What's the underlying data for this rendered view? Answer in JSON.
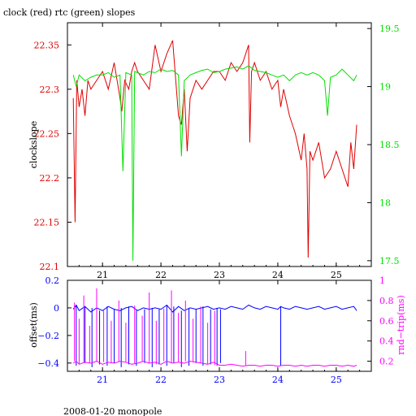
{
  "title": "clock (red) rtc (green) slopes",
  "footer": "2008-01-20 monopole",
  "colors": {
    "clock": "#e00000",
    "rtc": "#00e000",
    "offset": "#0000ff",
    "rndtrip": "#ff00ff",
    "axis": "#000000"
  },
  "chart_data": [
    {
      "type": "line",
      "ylabel": "clockslope",
      "y2label": "",
      "xlim": [
        20.4,
        25.6
      ],
      "ylim": [
        22.1,
        22.375
      ],
      "y2lim": [
        17.45,
        19.55
      ],
      "xticks": [
        21,
        22,
        23,
        24,
        25
      ],
      "xticklabels": [
        "21",
        "22",
        "23",
        "24",
        "25"
      ],
      "yticks": [
        22.1,
        22.15,
        22.2,
        22.25,
        22.3,
        22.35
      ],
      "yticklabels": [
        "22.1",
        "22.15",
        "22.2",
        "22.25",
        "22.3",
        "22.35"
      ],
      "y2ticks": [
        17.5,
        18,
        18.5,
        19,
        19.5
      ],
      "y2ticklabels": [
        "17.5",
        "18",
        "18.5",
        "19",
        "19.5"
      ],
      "series": [
        {
          "name": "clock",
          "axis": "left",
          "x": [
            20.5,
            20.53,
            20.56,
            20.6,
            20.65,
            20.7,
            20.75,
            20.8,
            20.9,
            21.0,
            21.1,
            21.2,
            21.3,
            21.33,
            21.38,
            21.45,
            21.5,
            21.55,
            21.6,
            21.7,
            21.8,
            21.9,
            22.0,
            22.1,
            22.2,
            22.3,
            22.35,
            22.4,
            22.45,
            22.5,
            22.55,
            22.6,
            22.7,
            22.8,
            22.9,
            23.0,
            23.1,
            23.2,
            23.3,
            23.4,
            23.5,
            23.52,
            23.55,
            23.6,
            23.7,
            23.8,
            23.9,
            24.0,
            24.05,
            24.1,
            24.2,
            24.3,
            24.4,
            24.45,
            24.5,
            24.52,
            24.55,
            24.6,
            24.7,
            24.8,
            24.9,
            25.0,
            25.1,
            25.2,
            25.25,
            25.3,
            25.35
          ],
          "y": [
            22.29,
            22.15,
            22.31,
            22.28,
            22.3,
            22.27,
            22.31,
            22.3,
            22.31,
            22.32,
            22.3,
            22.33,
            22.29,
            22.275,
            22.31,
            22.3,
            22.32,
            22.33,
            22.32,
            22.31,
            22.3,
            22.35,
            22.32,
            22.34,
            22.355,
            22.27,
            22.26,
            22.3,
            22.23,
            22.29,
            22.3,
            22.31,
            22.3,
            22.31,
            22.32,
            22.32,
            22.31,
            22.33,
            22.32,
            22.33,
            22.35,
            22.24,
            22.32,
            22.33,
            22.31,
            22.32,
            22.3,
            22.31,
            22.28,
            22.3,
            22.27,
            22.25,
            22.22,
            22.25,
            22.21,
            22.11,
            22.23,
            22.22,
            22.24,
            22.2,
            22.21,
            22.23,
            22.21,
            22.19,
            22.24,
            22.21,
            22.26
          ]
        },
        {
          "name": "rtc",
          "axis": "right",
          "x": [
            20.5,
            20.55,
            20.6,
            20.7,
            20.8,
            20.9,
            21.0,
            21.1,
            21.2,
            21.3,
            21.35,
            21.4,
            21.5,
            21.52,
            21.55,
            21.6,
            21.7,
            21.8,
            21.9,
            22.0,
            22.1,
            22.2,
            22.3,
            22.35,
            22.4,
            22.5,
            22.6,
            22.7,
            22.8,
            22.9,
            23.0,
            23.1,
            23.2,
            23.3,
            23.4,
            23.5,
            23.6,
            23.7,
            23.8,
            23.9,
            24.0,
            24.1,
            24.2,
            24.3,
            24.4,
            24.5,
            24.6,
            24.7,
            24.8,
            24.85,
            24.9,
            25.0,
            25.1,
            25.2,
            25.3,
            25.35
          ],
          "y": [
            19.1,
            19.0,
            19.1,
            19.05,
            19.08,
            19.1,
            19.1,
            19.12,
            19.08,
            19.1,
            18.27,
            19.12,
            19.1,
            17.5,
            19.13,
            19.12,
            19.1,
            19.13,
            19.12,
            19.15,
            19.13,
            19.14,
            19.1,
            18.4,
            19.05,
            19.1,
            19.12,
            19.14,
            19.15,
            19.12,
            19.13,
            19.15,
            19.16,
            19.17,
            19.15,
            19.18,
            19.14,
            19.13,
            19.12,
            19.1,
            19.08,
            19.1,
            19.05,
            19.1,
            19.12,
            19.1,
            19.12,
            19.1,
            19.05,
            18.75,
            19.08,
            19.1,
            19.15,
            19.1,
            19.05,
            19.1
          ]
        }
      ]
    },
    {
      "type": "line",
      "ylabel": "offset(ms)",
      "y2label": "rnd−trip(ms)",
      "xlim": [
        20.4,
        25.6
      ],
      "ylim": [
        -0.46,
        0.2
      ],
      "y2lim": [
        0.1,
        1.0
      ],
      "xticks": [
        21,
        22,
        23,
        24,
        25
      ],
      "xticklabels": [
        "21",
        "22",
        "23",
        "24",
        "25"
      ],
      "yticks": [
        -0.4,
        -0.2,
        0,
        0.2
      ],
      "yticklabels": [
        "−0.4",
        "−0.2",
        "0",
        "0.2"
      ],
      "y2ticks": [
        0.2,
        0.4,
        0.6,
        0.8,
        1.0
      ],
      "y2ticklabels": [
        "0.2",
        "0.4",
        "0.6",
        "0.8",
        "1"
      ],
      "series": [
        {
          "name": "offset",
          "axis": "left",
          "x": [
            20.5,
            20.55,
            20.6,
            20.7,
            20.8,
            20.9,
            21.0,
            21.1,
            21.2,
            21.3,
            21.4,
            21.5,
            21.6,
            21.7,
            21.8,
            21.9,
            22.0,
            22.1,
            22.2,
            22.3,
            22.4,
            22.5,
            22.6,
            22.7,
            22.8,
            22.9,
            23.0,
            23.1,
            23.2,
            23.3,
            23.4,
            23.5,
            23.6,
            23.7,
            23.8,
            23.9,
            24.0,
            24.05,
            24.1,
            24.2,
            24.3,
            24.4,
            24.5,
            24.6,
            24.7,
            24.8,
            24.9,
            25.0,
            25.1,
            25.2,
            25.3,
            25.35
          ],
          "y": [
            -0.01,
            0.02,
            -0.02,
            0.01,
            -0.03,
            0.0,
            -0.02,
            0.01,
            -0.01,
            -0.02,
            0.0,
            0.01,
            -0.02,
            0.0,
            -0.01,
            0.0,
            -0.01,
            0.02,
            -0.03,
            0.01,
            -0.02,
            0.0,
            -0.01,
            0.0,
            0.01,
            -0.01,
            0.0,
            -0.01,
            0.01,
            0.0,
            -0.01,
            0.02,
            0.0,
            -0.01,
            0.01,
            0.0,
            -0.01,
            0.01,
            0.0,
            -0.01,
            0.01,
            0.0,
            -0.01,
            0.0,
            0.01,
            -0.01,
            0.0,
            0.01,
            -0.01,
            0.0,
            0.01,
            -0.02
          ],
          "spikes": [
            {
              "x": 20.55,
              "y": -0.42
            },
            {
              "x": 20.7,
              "y": -0.4
            },
            {
              "x": 20.82,
              "y": -0.43
            },
            {
              "x": 20.95,
              "y": -0.41
            },
            {
              "x": 21.08,
              "y": -0.42
            },
            {
              "x": 21.2,
              "y": -0.4
            },
            {
              "x": 21.32,
              "y": -0.43
            },
            {
              "x": 21.45,
              "y": -0.41
            },
            {
              "x": 21.58,
              "y": -0.42
            },
            {
              "x": 21.72,
              "y": -0.4
            },
            {
              "x": 21.85,
              "y": -0.43
            },
            {
              "x": 21.97,
              "y": -0.41
            },
            {
              "x": 22.1,
              "y": -0.42
            },
            {
              "x": 22.22,
              "y": -0.4
            },
            {
              "x": 22.35,
              "y": -0.43
            },
            {
              "x": 22.48,
              "y": -0.42
            },
            {
              "x": 22.6,
              "y": -0.4
            },
            {
              "x": 22.72,
              "y": -0.42
            },
            {
              "x": 22.85,
              "y": -0.41
            },
            {
              "x": 22.96,
              "y": -0.42
            },
            {
              "x": 23.02,
              "y": -0.4
            },
            {
              "x": 24.05,
              "y": -0.42
            }
          ]
        },
        {
          "name": "rndtrip",
          "axis": "right",
          "x": [
            20.5,
            20.55,
            20.6,
            20.7,
            20.8,
            20.9,
            21.0,
            21.1,
            21.2,
            21.3,
            21.4,
            21.5,
            21.6,
            21.7,
            21.8,
            21.9,
            22.0,
            22.1,
            22.2,
            22.3,
            22.4,
            22.5,
            22.6,
            22.7,
            22.8,
            22.9,
            23.0,
            23.1,
            23.2,
            23.3,
            23.4,
            23.5,
            23.6,
            23.7,
            23.8,
            23.9,
            24.0,
            24.1,
            24.2,
            24.3,
            24.4,
            24.5,
            24.6,
            24.7,
            24.8,
            24.9,
            25.0,
            25.1,
            25.2,
            25.3,
            25.35
          ],
          "y": [
            0.18,
            0.2,
            0.17,
            0.19,
            0.18,
            0.2,
            0.17,
            0.19,
            0.18,
            0.2,
            0.19,
            0.17,
            0.18,
            0.2,
            0.18,
            0.19,
            0.17,
            0.2,
            0.18,
            0.19,
            0.18,
            0.2,
            0.19,
            0.18,
            0.17,
            0.19,
            0.16,
            0.16,
            0.17,
            0.16,
            0.15,
            0.16,
            0.16,
            0.15,
            0.16,
            0.16,
            0.15,
            0.16,
            0.16,
            0.15,
            0.16,
            0.15,
            0.16,
            0.16,
            0.15,
            0.16,
            0.16,
            0.15,
            0.16,
            0.15,
            0.16
          ],
          "spikes": [
            {
              "x": 20.52,
              "y": 0.78
            },
            {
              "x": 20.6,
              "y": 0.62
            },
            {
              "x": 20.68,
              "y": 0.85
            },
            {
              "x": 20.78,
              "y": 0.55
            },
            {
              "x": 20.9,
              "y": 0.92
            },
            {
              "x": 21.02,
              "y": 0.7
            },
            {
              "x": 21.15,
              "y": 0.6
            },
            {
              "x": 21.28,
              "y": 0.8
            },
            {
              "x": 21.4,
              "y": 0.58
            },
            {
              "x": 21.55,
              "y": 0.75
            },
            {
              "x": 21.68,
              "y": 0.65
            },
            {
              "x": 21.8,
              "y": 0.88
            },
            {
              "x": 21.92,
              "y": 0.6
            },
            {
              "x": 22.05,
              "y": 0.72
            },
            {
              "x": 22.18,
              "y": 0.9
            },
            {
              "x": 22.3,
              "y": 0.68
            },
            {
              "x": 22.42,
              "y": 0.8
            },
            {
              "x": 22.55,
              "y": 0.62
            },
            {
              "x": 22.68,
              "y": 0.74
            },
            {
              "x": 22.8,
              "y": 0.58
            },
            {
              "x": 22.92,
              "y": 0.7
            },
            {
              "x": 23.45,
              "y": 0.3
            }
          ]
        }
      ]
    }
  ]
}
